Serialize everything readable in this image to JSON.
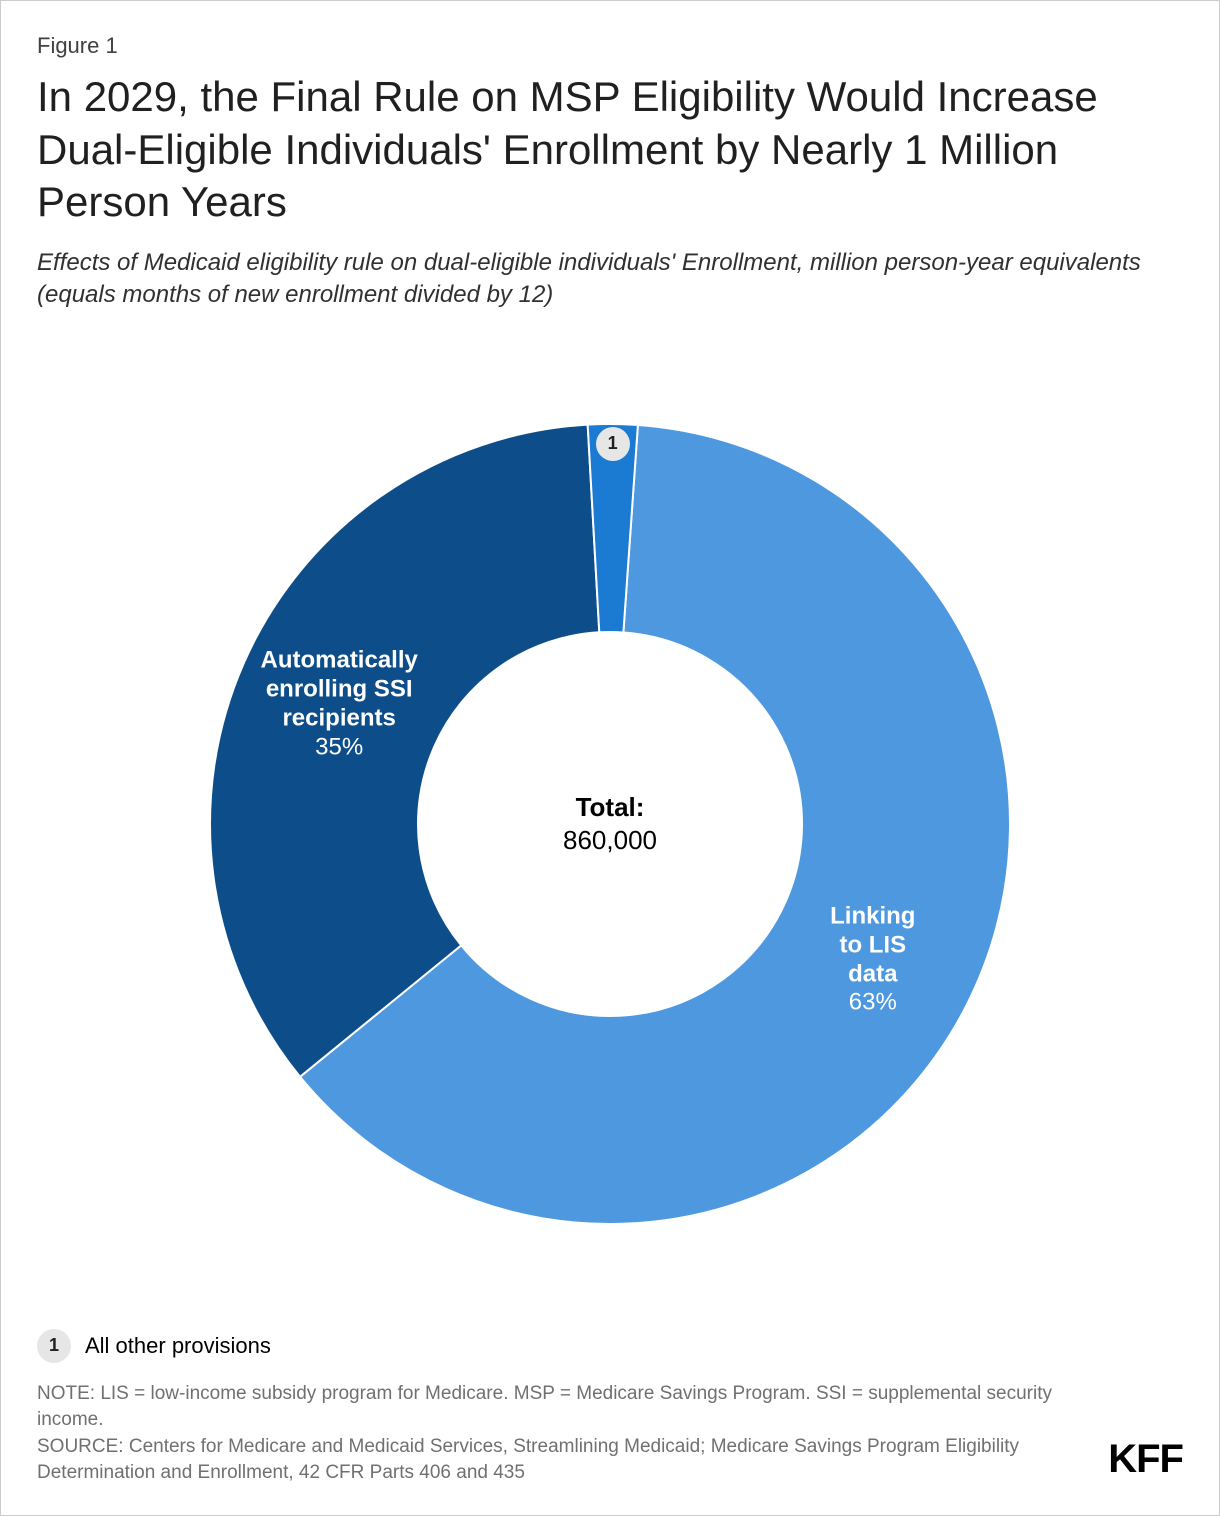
{
  "figure_label": "Figure 1",
  "title": "In 2029, the Final Rule on MSP Eligibility Would Increase Dual-Eligible Individuals' Enrollment by Nearly 1 Million Person Years",
  "subtitle": "Effects of Medicaid eligibility rule on dual-eligible individuals' Enrollment, million person-year equivalents (equals months of new enrollment divided by 12)",
  "chart": {
    "type": "donut",
    "background_color": "#ffffff",
    "inner_radius_ratio": 0.48,
    "start_angle_deg": 4,
    "slices": [
      {
        "name": "Linking to LIS data",
        "percent": 63,
        "color": "#4e98df",
        "label_color": "#ffffff",
        "label_lines": [
          "Linking",
          "to LIS",
          "data"
        ],
        "percent_text": "63%",
        "fontsize": 24
      },
      {
        "name": "Automatically enrolling SSI recipients",
        "percent": 35,
        "color": "#0d4e8a",
        "label_color": "#ffffff",
        "label_lines": [
          "Automatically",
          "enrolling SSI",
          "recipients"
        ],
        "percent_text": "35%",
        "fontsize": 24
      },
      {
        "name": "All other provisions",
        "percent": 2,
        "color": "#1b7ad1",
        "label_color": "#ffffff",
        "badge_number": "1",
        "badge_bg": "#e6e6e6",
        "badge_text_color": "#202020",
        "fontsize": 18
      }
    ],
    "center_label": {
      "line1": "Total:",
      "line2": "860,000",
      "fontsize": 26,
      "color": "#202020"
    }
  },
  "legend": {
    "items": [
      {
        "badge": "1",
        "badge_bg": "#e6e6e6",
        "badge_text_color": "#202020",
        "text": "All other provisions"
      }
    ],
    "fontsize": 22
  },
  "notes": {
    "note": "NOTE: LIS = low-income subsidy program for Medicare. MSP = Medicare Savings Program. SSI = supplemental security income.",
    "source": "SOURCE: Centers for Medicare and Medicaid Services, Streamlining Medicaid; Medicare Savings Program Eligibility Determination and Enrollment, 42 CFR Parts 406 and 435",
    "text_color": "#707070",
    "fontsize": 19
  },
  "brand": "KFF"
}
